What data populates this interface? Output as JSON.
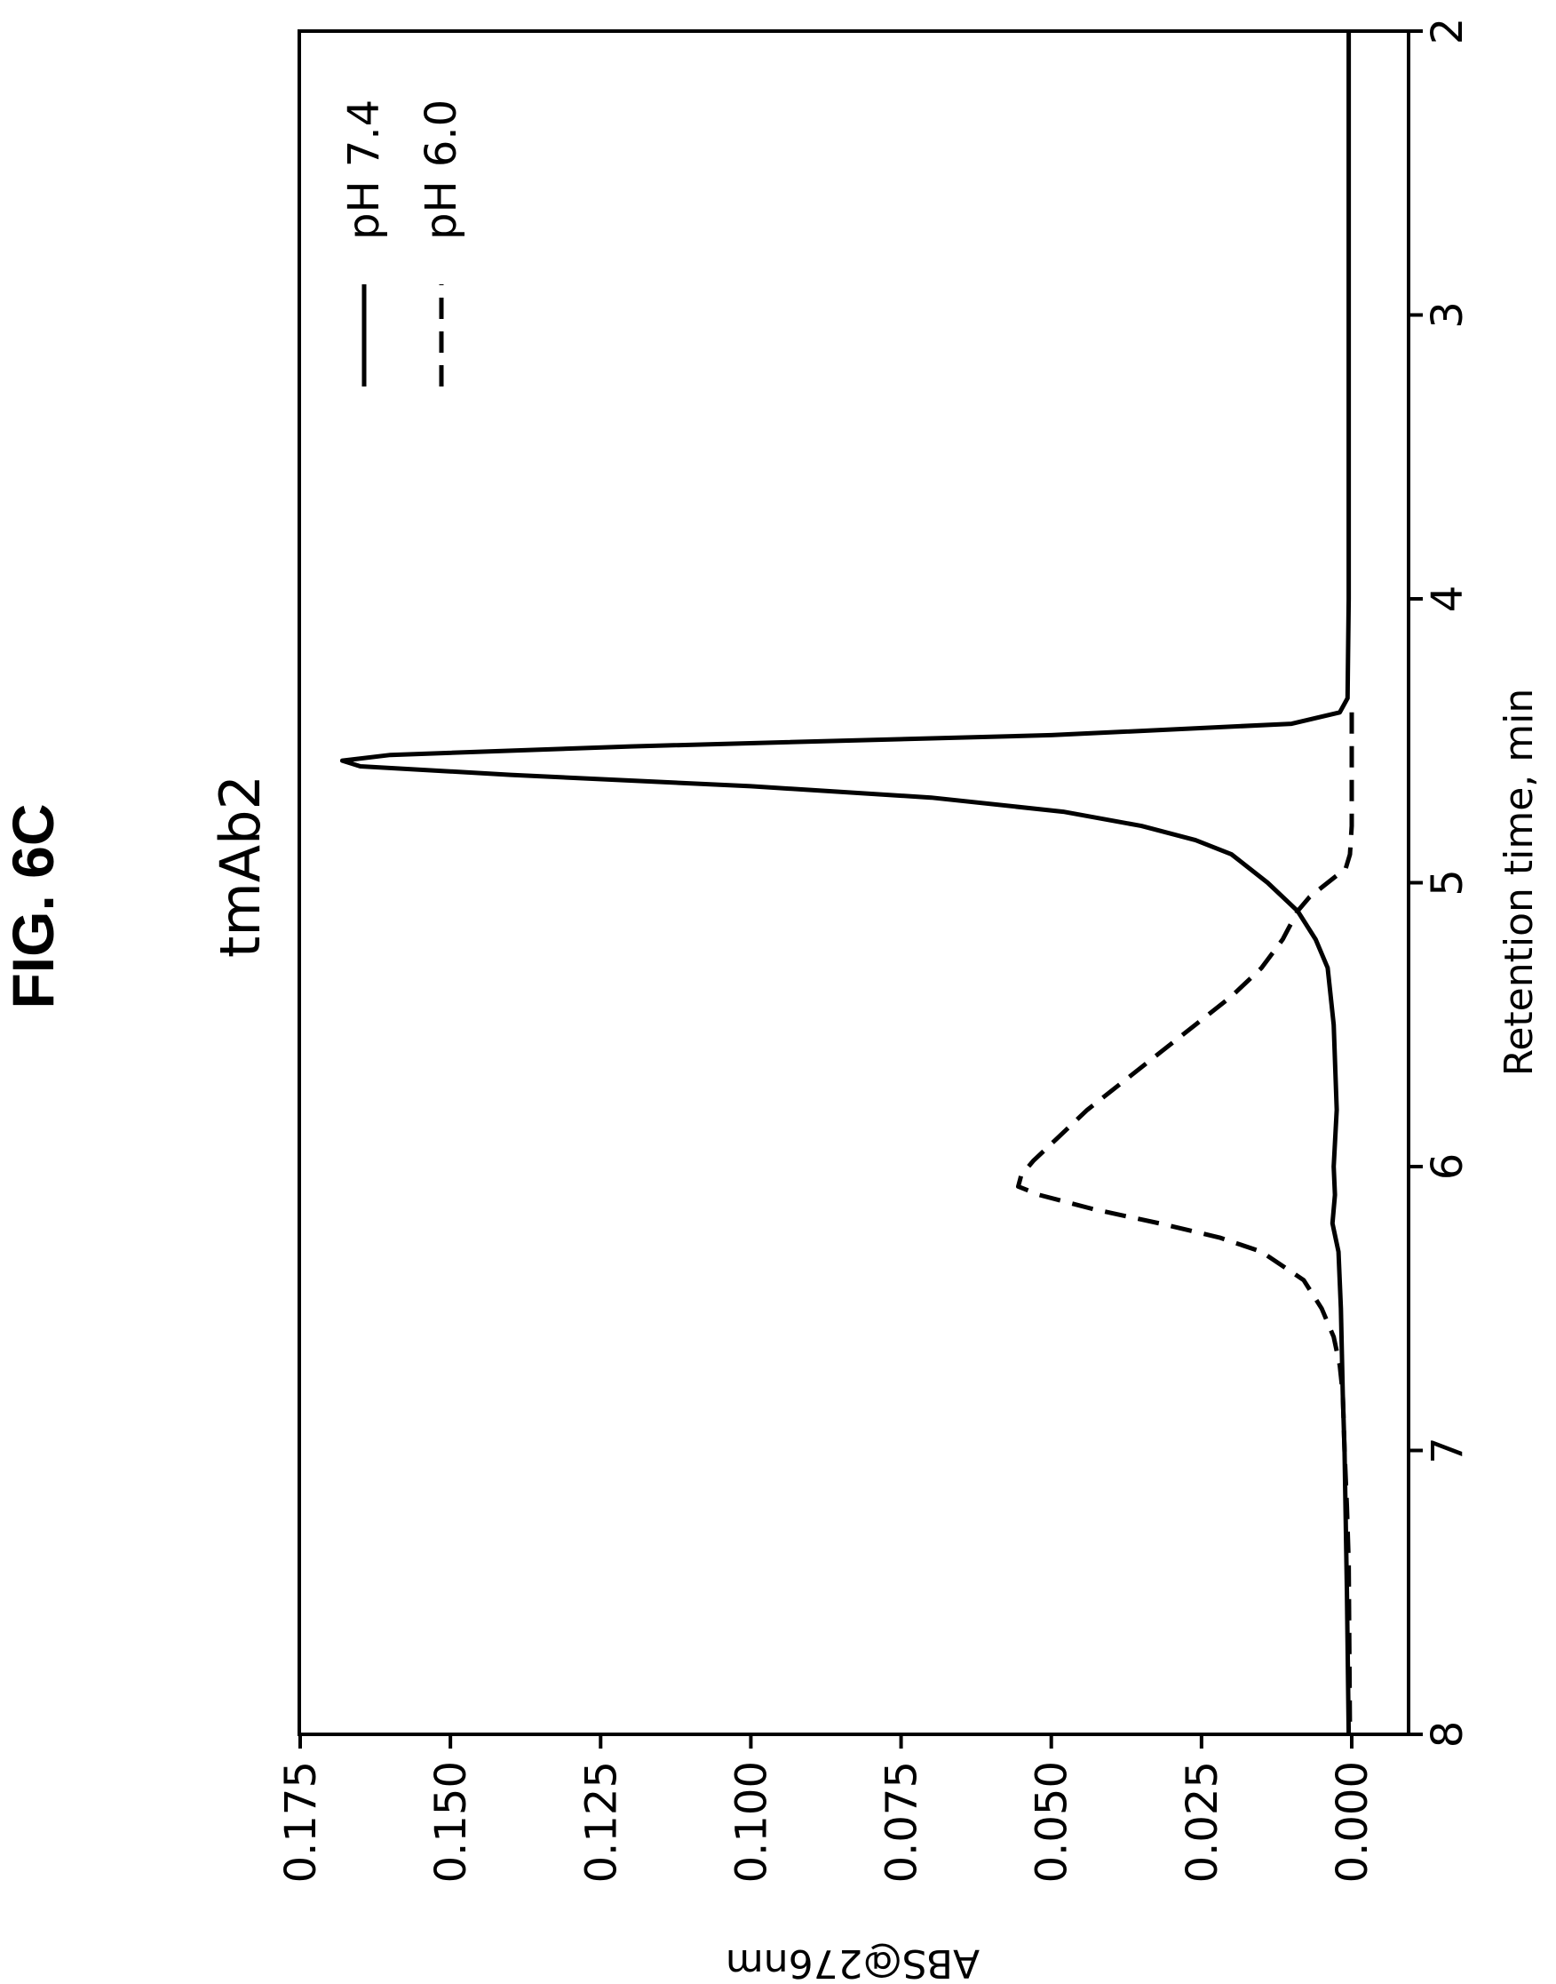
{
  "figure_label": "FIG. 6C",
  "chart_data": {
    "type": "line",
    "title": "tmAb2",
    "xlabel": "Retention time, min",
    "ylabel": "ABS@276nm",
    "xlim": [
      2,
      8
    ],
    "ylim": [
      -0.002,
      0.176
    ],
    "x_ticks": [
      2,
      3,
      4,
      5,
      6,
      7,
      8
    ],
    "y_ticks": [
      0.0,
      0.025,
      0.05,
      0.075,
      0.1,
      0.125,
      0.15,
      0.175
    ],
    "x_tick_labels": [
      "2",
      "3",
      "4",
      "5",
      "6",
      "7",
      "8"
    ],
    "y_tick_labels": [
      "0.000",
      "0.025",
      "0.050",
      "0.075",
      "0.100",
      "0.125",
      "0.150",
      "0.175"
    ],
    "orientation": "rotated-90-clockwise",
    "grid": false,
    "legend_position": "top-right",
    "series": [
      {
        "name": "pH 7.4",
        "style": "solid",
        "color": "#000000",
        "points": [
          [
            2.0,
            0.0005
          ],
          [
            3.0,
            0.0005
          ],
          [
            4.0,
            0.0005
          ],
          [
            4.35,
            0.0007
          ],
          [
            4.4,
            0.002
          ],
          [
            4.44,
            0.01
          ],
          [
            4.48,
            0.05
          ],
          [
            4.52,
            0.12
          ],
          [
            4.55,
            0.16
          ],
          [
            4.57,
            0.168
          ],
          [
            4.59,
            0.165
          ],
          [
            4.62,
            0.14
          ],
          [
            4.66,
            0.1
          ],
          [
            4.7,
            0.07
          ],
          [
            4.75,
            0.048
          ],
          [
            4.8,
            0.035
          ],
          [
            4.85,
            0.026
          ],
          [
            4.9,
            0.02
          ],
          [
            5.0,
            0.014
          ],
          [
            5.1,
            0.009
          ],
          [
            5.2,
            0.006
          ],
          [
            5.3,
            0.004
          ],
          [
            5.5,
            0.003
          ],
          [
            5.8,
            0.0025
          ],
          [
            6.0,
            0.003
          ],
          [
            6.1,
            0.0028
          ],
          [
            6.2,
            0.0032
          ],
          [
            6.3,
            0.0022
          ],
          [
            6.5,
            0.0018
          ],
          [
            6.8,
            0.0015
          ],
          [
            7.0,
            0.0012
          ],
          [
            7.5,
            0.0008
          ],
          [
            8.0,
            0.0005
          ]
        ]
      },
      {
        "name": "pH 6.0",
        "style": "dashed",
        "color": "#000000",
        "points": [
          [
            4.4,
            0.0
          ],
          [
            4.6,
            0.0
          ],
          [
            4.8,
            0.0
          ],
          [
            4.9,
            0.0003
          ],
          [
            4.95,
            0.001
          ],
          [
            5.0,
            0.004
          ],
          [
            5.05,
            0.007
          ],
          [
            5.1,
            0.009
          ],
          [
            5.2,
            0.0115
          ],
          [
            5.3,
            0.015
          ],
          [
            5.4,
            0.02
          ],
          [
            5.5,
            0.026
          ],
          [
            5.6,
            0.032
          ],
          [
            5.7,
            0.038
          ],
          [
            5.8,
            0.044
          ],
          [
            5.9,
            0.049
          ],
          [
            5.98,
            0.053
          ],
          [
            6.03,
            0.055
          ],
          [
            6.07,
            0.0555
          ],
          [
            6.1,
            0.052
          ],
          [
            6.15,
            0.043
          ],
          [
            6.2,
            0.032
          ],
          [
            6.25,
            0.022
          ],
          [
            6.3,
            0.015
          ],
          [
            6.4,
            0.008
          ],
          [
            6.5,
            0.005
          ],
          [
            6.6,
            0.003
          ],
          [
            6.7,
            0.002
          ],
          [
            6.8,
            0.0015
          ],
          [
            7.0,
            0.0012
          ],
          [
            7.2,
            0.0008
          ],
          [
            7.4,
            0.0005
          ],
          [
            8.0,
            0.0003
          ]
        ]
      }
    ]
  }
}
